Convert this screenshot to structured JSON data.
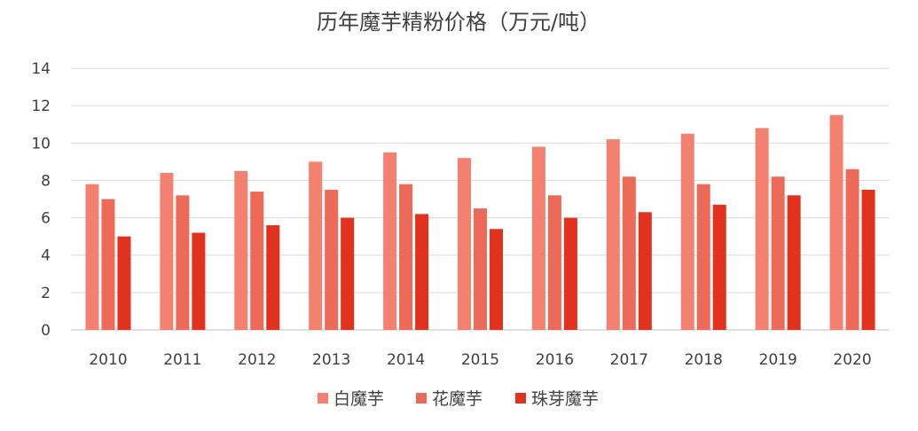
{
  "chart_data": {
    "type": "bar",
    "title": "历年魔芋精粉价格（万元/吨）",
    "categories": [
      "2010",
      "2011",
      "2012",
      "2013",
      "2014",
      "2015",
      "2016",
      "2017",
      "2018",
      "2019",
      "2020"
    ],
    "series": [
      {
        "name": "白魔芋",
        "color": "#F4806F",
        "values": [
          7.8,
          8.4,
          8.5,
          9.0,
          9.5,
          9.2,
          9.8,
          10.2,
          10.5,
          10.8,
          11.5
        ]
      },
      {
        "name": "花魔芋",
        "color": "#EE6A58",
        "values": [
          7.0,
          7.2,
          7.4,
          7.5,
          7.8,
          6.5,
          7.2,
          8.2,
          7.8,
          8.2,
          8.6
        ]
      },
      {
        "name": "珠芽魔芋",
        "color": "#E2311C",
        "values": [
          5.0,
          5.2,
          5.6,
          6.0,
          6.2,
          5.4,
          6.0,
          6.3,
          6.7,
          7.2,
          7.5
        ]
      }
    ],
    "xlabel": "",
    "ylabel": "",
    "ylim": [
      0,
      14
    ],
    "yticks": [
      0,
      2,
      4,
      6,
      8,
      10,
      12,
      14
    ],
    "grid": true,
    "legend_position": "bottom"
  }
}
